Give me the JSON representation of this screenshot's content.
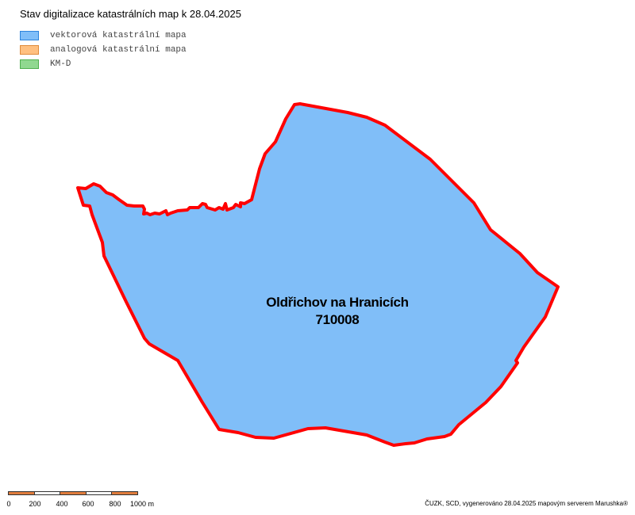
{
  "map": {
    "title": "Stav digitalizace katastrálních map k 28.04.2025",
    "legend": [
      {
        "label": "vektorová katastrální mapa",
        "fill": "#80bef8",
        "border": "#2d84dc"
      },
      {
        "label": "analogová katastrální mapa",
        "fill": "#ffc080",
        "border": "#e08c3c"
      },
      {
        "label": "KM-D",
        "fill": "#90d890",
        "border": "#50b050"
      }
    ],
    "area": {
      "name": "Oldřichov na Hranicích",
      "code": "710008",
      "fill": "#80bef8",
      "border": "#ff0000"
    },
    "scalebar": {
      "labels": [
        "0",
        "200",
        "400",
        "600",
        "800",
        "1000 m"
      ],
      "colors": [
        "#e07c3c",
        "#ffffff",
        "#e07c3c",
        "#ffffff",
        "#e07c3c"
      ]
    },
    "credit": "ČUZK, SCD, vygenerováno 28.04.2025 mapovým serverem Marushka®"
  }
}
